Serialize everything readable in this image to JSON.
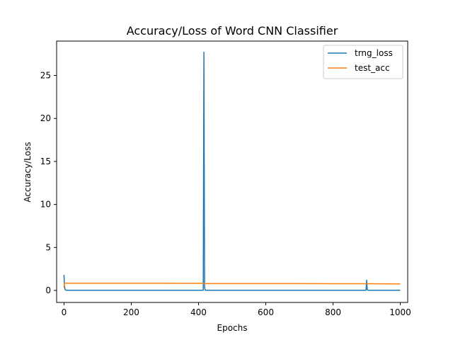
{
  "chart_data": {
    "type": "line",
    "title": "Accuracy/Loss of Word CNN Classifier",
    "xlabel": "Epochs",
    "ylabel": "Accuracy/Loss",
    "xlim": [
      -22,
      1022
    ],
    "ylim": [
      -1.4,
      29.0
    ],
    "x_ticks": [
      0,
      200,
      400,
      600,
      800,
      1000
    ],
    "y_ticks": [
      0,
      5,
      10,
      15,
      20,
      25
    ],
    "grid": false,
    "legend_position": "top-right",
    "series": [
      {
        "name": "trng_loss",
        "color": "#1f77b4",
        "x": [
          0,
          1,
          3,
          6,
          50,
          100,
          200,
          300,
          400,
          414,
          415,
          416,
          417,
          418,
          420,
          500,
          600,
          700,
          800,
          898,
          899,
          900,
          901,
          902,
          905,
          1000
        ],
        "y": [
          1.8,
          0.6,
          0.1,
          0.02,
          0.02,
          0.02,
          0.02,
          0.02,
          0.02,
          0.02,
          14.0,
          27.7,
          14.0,
          0.3,
          0.02,
          0.02,
          0.02,
          0.02,
          0.02,
          0.02,
          0.6,
          1.2,
          0.5,
          0.05,
          0.02,
          0.02
        ]
      },
      {
        "name": "test_acc",
        "color": "#ff7f0e",
        "x": [
          0,
          1,
          2,
          3,
          100,
          200,
          300,
          400,
          414,
          416,
          420,
          500,
          600,
          700,
          800,
          900,
          1000
        ],
        "y": [
          0.3,
          0.82,
          0.83,
          0.83,
          0.83,
          0.83,
          0.83,
          0.82,
          0.82,
          0.79,
          0.79,
          0.79,
          0.79,
          0.79,
          0.78,
          0.78,
          0.75
        ]
      }
    ]
  }
}
